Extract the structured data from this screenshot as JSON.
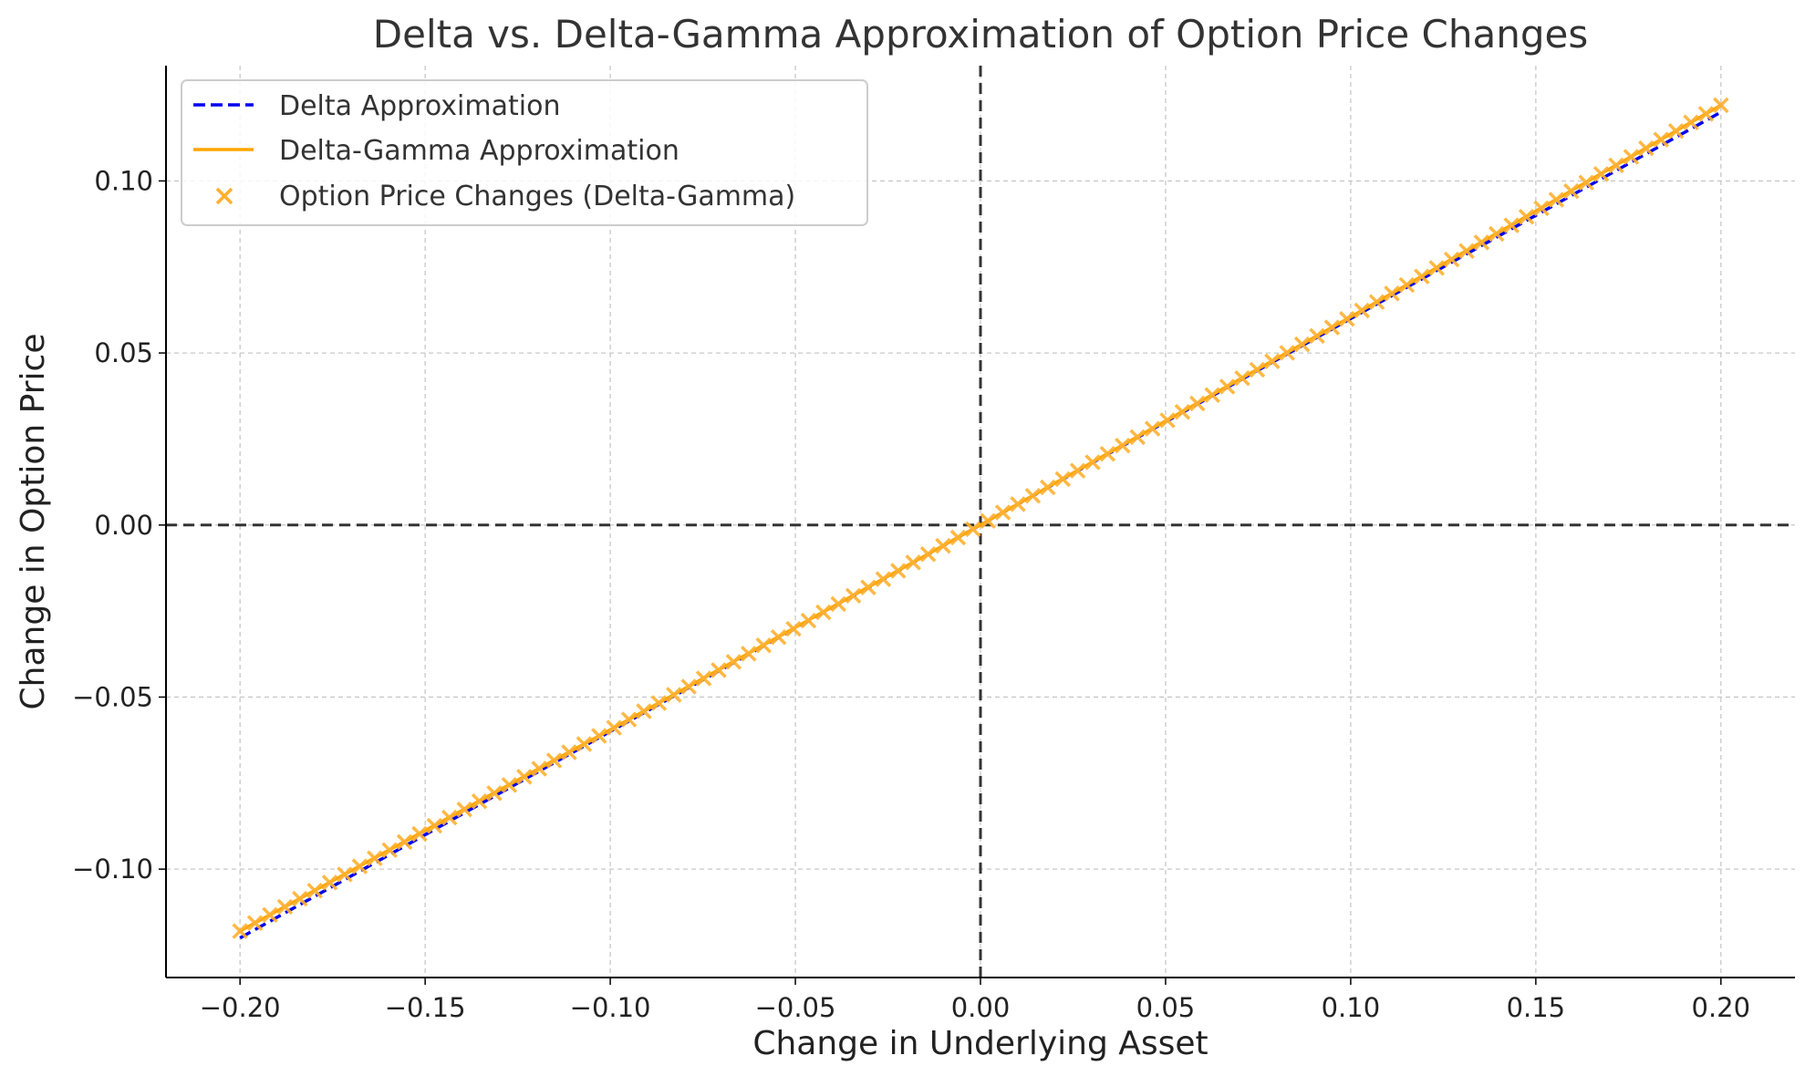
{
  "chart_data": {
    "type": "line",
    "title": "Delta vs. Delta-Gamma Approximation of Option Price Changes",
    "xlabel": "Change in Underlying Asset",
    "ylabel": "Change in Option Price",
    "xlim": [
      -0.22,
      0.22
    ],
    "ylim": [
      -0.1315,
      0.1335
    ],
    "xticks": [
      -0.2,
      -0.15,
      -0.1,
      -0.05,
      0.0,
      0.05,
      0.1,
      0.15,
      0.2
    ],
    "xtick_labels": [
      "−0.20",
      "−0.15",
      "−0.10",
      "−0.05",
      "0.00",
      "0.05",
      "0.10",
      "0.15",
      "0.20"
    ],
    "yticks": [
      -0.1,
      -0.05,
      0.0,
      0.05,
      0.1
    ],
    "ytick_labels": [
      "−0.10",
      "−0.05",
      "0.00",
      "0.05",
      "0.10"
    ],
    "grid": true,
    "legend_position": "top-left",
    "reference_lines": {
      "x": 0,
      "y": 0,
      "color": "#333333"
    },
    "series": [
      {
        "name": "Delta Approximation",
        "style": "dashed-line",
        "color": "#0000ee",
        "x": [
          -0.2,
          0.2
        ],
        "y": [
          -0.12,
          0.12
        ]
      },
      {
        "name": "Delta-Gamma Approximation",
        "style": "solid-line",
        "color": "#ffa500",
        "x": [
          -0.2,
          -0.1,
          0.0,
          0.1,
          0.2
        ],
        "y": [
          -0.118,
          -0.0595,
          0.0,
          0.0605,
          0.122
        ]
      },
      {
        "name": "Option Price Changes (Delta-Gamma)",
        "style": "x-markers",
        "color": "#ffa500",
        "x_start": -0.2,
        "x_end": 0.2,
        "num_points": 100,
        "delta": 0.6,
        "gamma": 0.1
      }
    ]
  }
}
